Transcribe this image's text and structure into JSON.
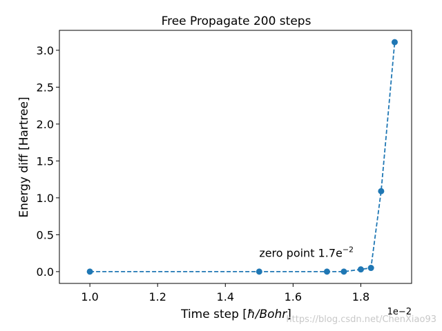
{
  "chart_data": {
    "type": "line",
    "title": "Free Propagate 200 steps",
    "xlabel_main": "Time step [",
    "xlabel_math": "ħ/Bohr",
    "xlabel_end": "]",
    "ylabel": "Energy diff [Hartree]",
    "x_offset_label": "1e−2",
    "xlim": [
      0.91,
      1.95
    ],
    "ylim": [
      -0.16,
      3.27
    ],
    "x_ticks": [
      1.0,
      1.2,
      1.4,
      1.6,
      1.8
    ],
    "x_tick_labels": [
      "1.0",
      "1.2",
      "1.4",
      "1.6",
      "1.8"
    ],
    "y_ticks": [
      0.0,
      0.5,
      1.0,
      1.5,
      2.0,
      2.5,
      3.0
    ],
    "y_tick_labels": [
      "0.0",
      "0.5",
      "1.0",
      "1.5",
      "2.0",
      "2.5",
      "3.0"
    ],
    "grid": false,
    "series": [
      {
        "x": [
          1.0,
          1.5,
          1.7,
          1.75,
          1.8,
          1.83,
          1.86,
          1.9
        ],
        "y": [
          0.0,
          0.0,
          0.0,
          0.0,
          0.03,
          0.05,
          1.09,
          3.11
        ],
        "color": "#1f77b4",
        "line_style": "dashed",
        "marker": "circle"
      }
    ],
    "annotation": {
      "text": "zero point 1.7e",
      "superscript": "−2",
      "x": 1.5,
      "y": 0.2
    }
  },
  "watermark": "https://blog.csdn.net/ChenXiao93",
  "colors": {
    "series": "#1f77b4",
    "axes": "#000000",
    "background": "#ffffff"
  }
}
